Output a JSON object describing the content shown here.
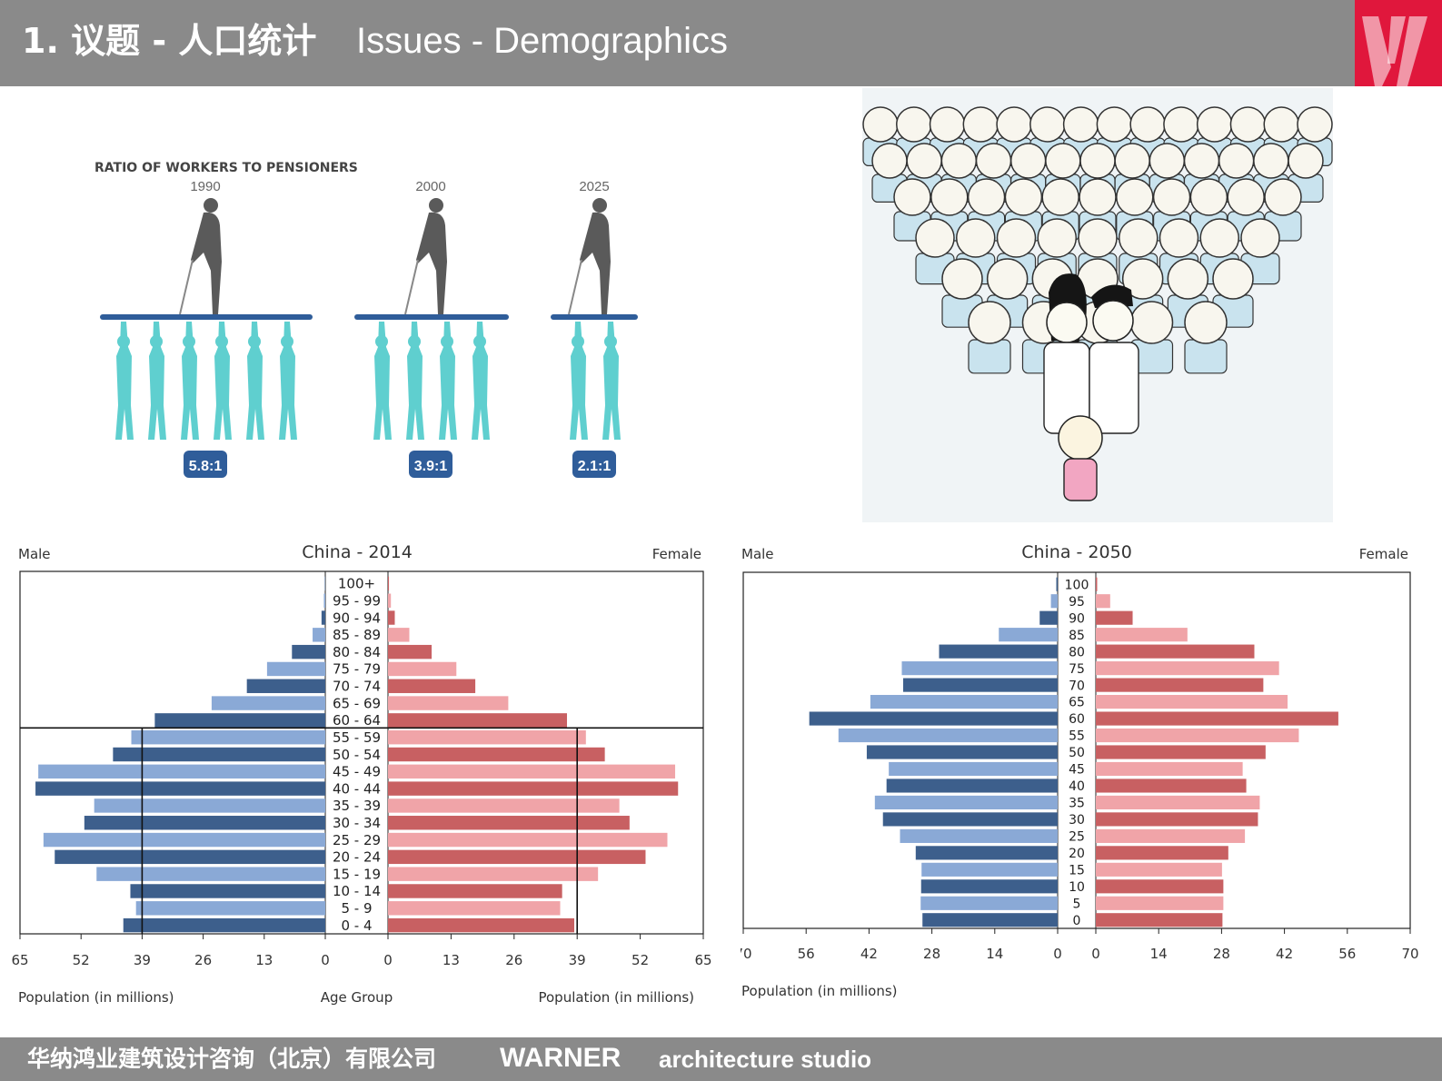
{
  "header": {
    "title_cn": "1. 议题 - 人口统计",
    "title_en": "Issues - Demographics"
  },
  "footer": {
    "company_cn": "华纳鸿业建筑设计咨询（北京）有限公司",
    "brand": "WARNER",
    "studio": "architecture  studio"
  },
  "ratio_graphic": {
    "title": "RATIO OF WORKERS TO PENSIONERS",
    "groups": [
      {
        "year": "1990",
        "ratio_label": "5.8:1",
        "workers": 5.8
      },
      {
        "year": "2000",
        "ratio_label": "3.9:1",
        "workers": 3.9
      },
      {
        "year": "2025",
        "ratio_label": "2.1:1",
        "workers": 2.1
      }
    ],
    "colors": {
      "pensioner": "#5a5a5a",
      "worker": "#5fcfcf",
      "plank": "#2f5d9a",
      "badge": "#2f5d9a"
    }
  },
  "cartoon": {
    "subject": "inverted-pyramid-crowd-of-elderly-over-young-couple-and-child"
  },
  "chart_data": [
    {
      "type": "bar",
      "title": "China - 2014",
      "left_label": "Male",
      "right_label": "Female",
      "categories": [
        "100+",
        "95 - 99",
        "90 - 94",
        "85 - 89",
        "80 - 84",
        "75 - 79",
        "70 - 74",
        "65 - 69",
        "60 - 64",
        "55 - 59",
        "50 - 54",
        "45 - 49",
        "40 - 44",
        "35 - 39",
        "30 - 34",
        "25 - 29",
        "20 - 24",
        "15 - 19",
        "10 - 14",
        "5 - 9",
        "0 - 4"
      ],
      "series": [
        {
          "name": "Male",
          "values": [
            0.1,
            0.3,
            0.8,
            2.7,
            7.1,
            12.4,
            16.7,
            24.2,
            36.3,
            41.3,
            45.2,
            61.1,
            61.7,
            49.2,
            51.3,
            60.0,
            57.6,
            48.7,
            41.5,
            40.3,
            43.0
          ]
        },
        {
          "name": "Female",
          "values": [
            0.2,
            0.6,
            1.4,
            4.4,
            9.0,
            14.1,
            18.0,
            24.8,
            36.9,
            40.8,
            44.7,
            59.2,
            59.8,
            47.7,
            49.8,
            57.6,
            53.1,
            43.3,
            35.9,
            35.5,
            38.4
          ]
        }
      ],
      "colors": {
        "male_dark": "#3d5f8c",
        "male_light": "#8aa9d6",
        "female_dark": "#c86062",
        "female_light": "#f0a4a8"
      },
      "ticks": [
        65,
        52,
        39,
        26,
        13,
        0
      ],
      "xlim": [
        0,
        65
      ],
      "xlabel_left": "Population (in millions)",
      "xlabel_center": "Age Group",
      "xlabel_right": "Population (in millions)",
      "reference_lines": {
        "vertical_at": 39,
        "horizontal_between": [
          "60 - 64",
          "55 - 59"
        ]
      }
    },
    {
      "type": "bar",
      "title": "China - 2050",
      "left_label": "Male",
      "right_label": "Female",
      "categories": [
        "100",
        "95",
        "90",
        "85",
        "80",
        "75",
        "70",
        "65",
        "60",
        "55",
        "50",
        "45",
        "40",
        "35",
        "30",
        "25",
        "20",
        "15",
        "10",
        "5",
        "0"
      ],
      "series": [
        {
          "name": "Male",
          "values": [
            0.3,
            1.5,
            4.0,
            13.1,
            26.4,
            34.7,
            34.4,
            41.7,
            55.3,
            48.8,
            42.5,
            37.6,
            38.1,
            40.7,
            38.9,
            35.1,
            31.6,
            30.3,
            30.4,
            30.5,
            30.1
          ]
        },
        {
          "name": "Female",
          "values": [
            0.3,
            3.2,
            8.2,
            20.4,
            35.3,
            40.8,
            37.3,
            42.7,
            54.0,
            45.2,
            37.8,
            32.7,
            33.5,
            36.5,
            36.1,
            33.2,
            29.5,
            28.1,
            28.4,
            28.4,
            28.2
          ]
        }
      ],
      "colors": {
        "male_dark": "#3d5f8c",
        "male_light": "#8aa9d6",
        "female_dark": "#c86062",
        "female_light": "#f0a4a8"
      },
      "ticks": [
        70,
        56,
        42,
        28,
        14,
        0
      ],
      "xlim": [
        0,
        70
      ],
      "xlabel_left": "Population (in millions)"
    }
  ]
}
